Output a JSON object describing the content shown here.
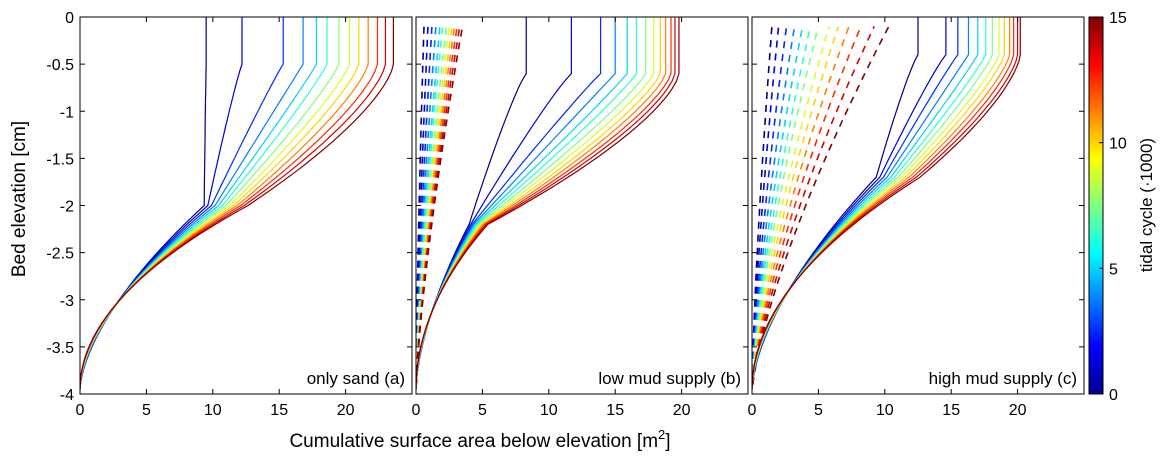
{
  "figure": {
    "ylabel": "Bed elevation [cm]",
    "xlabel_main": "Cumulative surface area below elevation [m",
    "xlabel_sup": "2",
    "xlabel_end": "]"
  },
  "colorbar": {
    "label": "tidal cycle (·1000)",
    "range": [
      0,
      15
    ],
    "ticks": [
      "0",
      "5",
      "10",
      "15"
    ],
    "colormap": "jet"
  },
  "panels": [
    {
      "label": "only sand (a)"
    },
    {
      "label": "low mud supply (b)"
    },
    {
      "label": "high mud supply (c)"
    }
  ],
  "y_ticks": [
    "0",
    "-0.5",
    "-1",
    "-1.5",
    "-2",
    "-2.5",
    "-3",
    "-3.5",
    "-4"
  ],
  "x_ticks": [
    "0",
    "5",
    "10",
    "15",
    "20"
  ],
  "chart_data": [
    {
      "type": "line",
      "title": "only sand (a)",
      "xlim": [
        0,
        25
      ],
      "ylim": [
        -4,
        0
      ],
      "line_count": 13,
      "color_by": "tidal cycle",
      "solid_top_x": [
        9.5,
        12.2,
        15.3,
        16.8,
        17.8,
        18.6,
        19.5,
        20.3,
        21.0,
        21.7,
        22.4,
        23.0,
        23.6
      ],
      "solid_top_y": -0.5,
      "solid_cross_y": -2.0,
      "solid_cross_x": 11.0
    },
    {
      "type": "line",
      "title": "low mud supply (b)",
      "xlim": [
        0,
        25
      ],
      "ylim": [
        -4,
        0
      ],
      "line_count": 13,
      "color_by": "tidal cycle",
      "solid_top_x": [
        8.3,
        11.7,
        13.9,
        15.0,
        15.9,
        16.6,
        17.3,
        17.9,
        18.4,
        18.8,
        19.2,
        19.5,
        19.8
      ],
      "solid_top_y": -0.6,
      "solid_cross_y": -2.2,
      "solid_cross_x": 4.7,
      "dashed_max_x": [
        0.6,
        0.9,
        1.2,
        1.5,
        1.8,
        2.0,
        2.3,
        2.5,
        2.7,
        2.9,
        3.1,
        3.3,
        3.5
      ]
    },
    {
      "type": "line",
      "title": "high mud supply (c)",
      "xlim": [
        0,
        25
      ],
      "ylim": [
        -4,
        0
      ],
      "line_count": 13,
      "color_by": "tidal cycle",
      "solid_top_x": [
        12.5,
        14.6,
        15.5,
        16.3,
        17.0,
        17.6,
        18.1,
        18.6,
        19.0,
        19.4,
        19.7,
        20.0,
        20.2
      ],
      "solid_top_y": -0.4,
      "solid_cross_y": -1.7,
      "solid_cross_x": 11.0,
      "dashed_max_x": [
        1.5,
        2.0,
        2.6,
        3.2,
        3.8,
        4.4,
        5.0,
        5.8,
        6.5,
        7.3,
        8.2,
        9.2,
        10.3
      ]
    }
  ]
}
